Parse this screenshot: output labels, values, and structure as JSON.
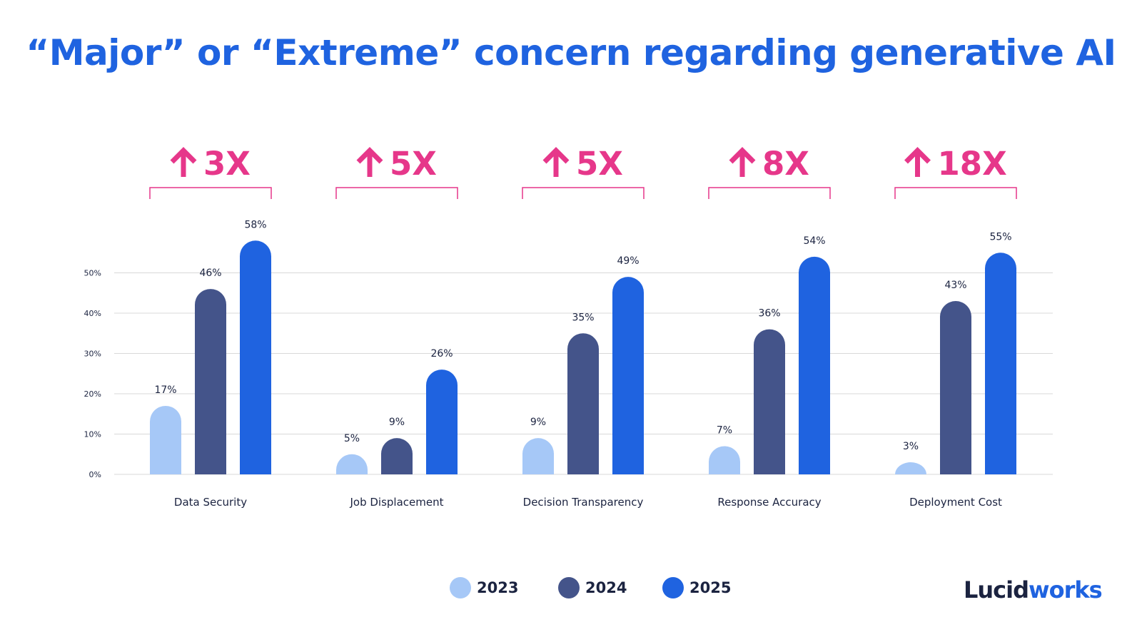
{
  "title": "“Major” or “Extreme” concern regarding generative AI",
  "brand": {
    "part1": "Lucid",
    "part2": "works"
  },
  "colors": {
    "title": "#1f63e0",
    "series_2023": "#a6c8f7",
    "series_2024": "#44548a",
    "series_2025": "#1f63e0",
    "increase": "#e6378a",
    "grid": "#d9d9d9",
    "text": "#1b2340"
  },
  "chart_data": {
    "type": "bar",
    "categories": [
      "Data Security",
      "Job Displacement",
      "Decision Transparency",
      "Response Accuracy",
      "Deployment Cost"
    ],
    "series": [
      {
        "name": "2023",
        "values": [
          17,
          5,
          9,
          7,
          3
        ]
      },
      {
        "name": "2024",
        "values": [
          46,
          9,
          35,
          36,
          43
        ]
      },
      {
        "name": "2025",
        "values": [
          58,
          26,
          49,
          54,
          55
        ]
      }
    ],
    "data_labels": [
      [
        "17%",
        "5%",
        "9%",
        "7%",
        "3%"
      ],
      [
        "46%",
        "9%",
        "35%",
        "36%",
        "43%"
      ],
      [
        "58%",
        "26%",
        "49%",
        "54%",
        "55%"
      ]
    ],
    "increase_labels": [
      "3X",
      "5X",
      "5X",
      "8X",
      "18X"
    ],
    "y_ticks": [
      0,
      10,
      20,
      30,
      40,
      50
    ],
    "y_tick_labels": [
      "0%",
      "10%",
      "20%",
      "30%",
      "40%",
      "50%"
    ],
    "ylim": [
      0,
      58
    ],
    "grid": true,
    "legend_position": "bottom-center",
    "title": "“Major” or “Extreme” concern regarding generative AI",
    "xlabel": "",
    "ylabel": ""
  }
}
